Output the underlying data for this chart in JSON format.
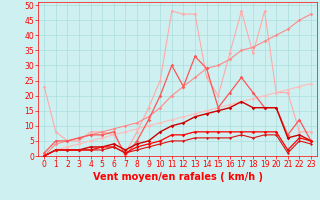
{
  "xlabel": "Vent moyen/en rafales ( km/h )",
  "background_color": "#cff0f0",
  "grid_color": "#aadddd",
  "x": [
    0,
    1,
    2,
    3,
    4,
    5,
    6,
    7,
    8,
    9,
    10,
    11,
    12,
    13,
    14,
    15,
    16,
    17,
    18,
    19,
    20,
    21,
    22,
    23
  ],
  "series": [
    {
      "color": "#ffaaaa",
      "lw": 0.8,
      "marker": "D",
      "ms": 1.8,
      "data": [
        23,
        8,
        5,
        5,
        8,
        8,
        7,
        1,
        8,
        16,
        25,
        48,
        47,
        47,
        26,
        20,
        34,
        48,
        34,
        48,
        21,
        21,
        8,
        8
      ]
    },
    {
      "color": "#ff8888",
      "lw": 0.8,
      "marker": "D",
      "ms": 1.8,
      "data": [
        0,
        4,
        5,
        6,
        7,
        8,
        9,
        10,
        11,
        13,
        16,
        20,
        23,
        26,
        29,
        30,
        32,
        35,
        36,
        38,
        40,
        42,
        45,
        47
      ]
    },
    {
      "color": "#ffbbbb",
      "lw": 0.8,
      "marker": "D",
      "ms": 1.8,
      "data": [
        0,
        2,
        3,
        4,
        5,
        6,
        7,
        8,
        9,
        10,
        11,
        12,
        13,
        14,
        15,
        16,
        17,
        18,
        19,
        20,
        21,
        22,
        23,
        24
      ]
    },
    {
      "color": "#ff5555",
      "lw": 0.9,
      "marker": "D",
      "ms": 1.8,
      "data": [
        1,
        5,
        5,
        6,
        7,
        7,
        8,
        0,
        5,
        12,
        20,
        30,
        23,
        33,
        29,
        16,
        21,
        26,
        21,
        16,
        16,
        7,
        12,
        5
      ]
    },
    {
      "color": "#cc0000",
      "lw": 1.0,
      "marker": "D",
      "ms": 1.8,
      "data": [
        0,
        2,
        2,
        2,
        3,
        3,
        4,
        2,
        4,
        5,
        8,
        10,
        11,
        13,
        14,
        15,
        16,
        18,
        16,
        16,
        16,
        6,
        7,
        5
      ]
    },
    {
      "color": "#ff0000",
      "lw": 0.9,
      "marker": "D",
      "ms": 1.8,
      "data": [
        0,
        2,
        2,
        2,
        2,
        3,
        3,
        1,
        3,
        4,
        5,
        7,
        7,
        8,
        8,
        8,
        8,
        8,
        8,
        8,
        8,
        2,
        6,
        5
      ]
    },
    {
      "color": "#dd1111",
      "lw": 0.8,
      "marker": "D",
      "ms": 1.5,
      "data": [
        0,
        2,
        2,
        2,
        2,
        2,
        3,
        1,
        2,
        3,
        4,
        5,
        5,
        6,
        6,
        6,
        6,
        7,
        6,
        7,
        7,
        1,
        5,
        4
      ]
    }
  ],
  "ylim": [
    0,
    51
  ],
  "yticks": [
    0,
    5,
    10,
    15,
    20,
    25,
    30,
    35,
    40,
    45,
    50
  ],
  "xticks": [
    0,
    1,
    2,
    3,
    4,
    5,
    6,
    7,
    8,
    9,
    10,
    11,
    12,
    13,
    14,
    15,
    16,
    17,
    18,
    19,
    20,
    21,
    22,
    23
  ],
  "tick_color": "#ff0000",
  "label_color": "#ff0000",
  "label_fontsize": 7,
  "tick_fontsize": 5.5
}
